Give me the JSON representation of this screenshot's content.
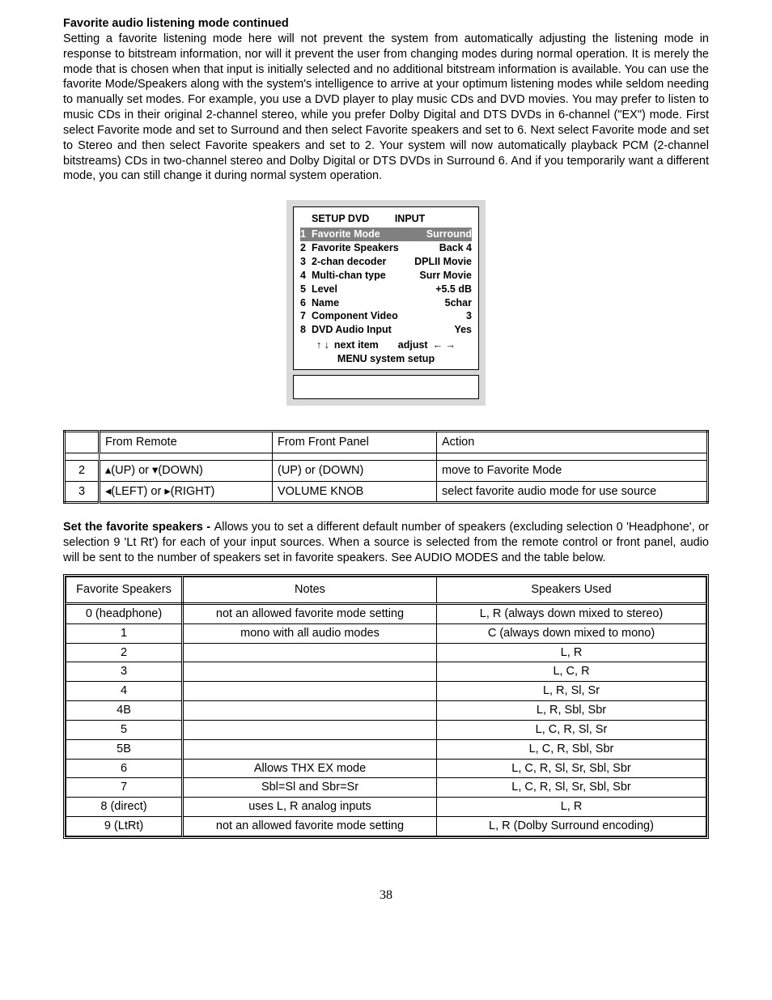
{
  "colors": {
    "page_bg": "#ffffff",
    "text": "#000000",
    "osd_wrapper_bg": "#d9d9d9",
    "osd_highlight_bg": "#808080",
    "osd_highlight_text": "#ffffff",
    "border": "#000000"
  },
  "typography": {
    "body_font": "Arial",
    "body_size_pt": 11,
    "page_number_font": "Times New Roman",
    "page_number_size_pt": 12
  },
  "header": {
    "title": "Favorite audio listening mode continued"
  },
  "body": {
    "para1": "Setting a favorite listening mode here will not prevent the system from automatically adjusting the listening mode in response to bitstream information, nor will it prevent the user from changing modes during normal operation. It is merely the mode that is chosen when that input is initially selected and no additional bitstream information is available. You can use the favorite Mode/Speakers along with the system's intelligence to arrive at your optimum listening modes while seldom needing to manually set modes. For example, you use a DVD player to play music CDs and DVD movies. You may prefer to listen to music CDs in their original 2-channel stereo, while you prefer Dolby Digital and DTS DVDs in 6-channel (\"EX\") mode. First select Favorite mode and set to Surround and then select Favorite speakers and set to 6. Next select Favorite mode and set to Stereo and then select Favorite speakers and set to 2. Your system will now automatically playback PCM (2-channel bitstreams) CDs in two-channel stereo and Dolby Digital or DTS DVDs in Surround 6. And if you temporarily want a different mode, you can still change it during normal system operation.",
    "para2_lead": "Set the favorite speakers - ",
    "para2": "Allows you to set a different default number of speakers (excluding selection 0 'Headphone', or selection 9 'Lt Rt') for each of your input sources. When a source is selected from the remote control or front panel, audio will be sent to the number of speakers set in favorite speakers. See AUDIO MODES and the table below."
  },
  "osd": {
    "header_left": "SETUP DVD",
    "header_right": "INPUT",
    "rows": [
      {
        "n": "1",
        "label": "Favorite Mode",
        "val": "Surround",
        "highlighted": true
      },
      {
        "n": "2",
        "label": "Favorite Speakers",
        "val": "Back 4",
        "highlighted": false
      },
      {
        "n": "3",
        "label": "2-chan decoder",
        "val": "DPLII Movie",
        "highlighted": false
      },
      {
        "n": "4",
        "label": "Multi-chan type",
        "val": "Surr Movie",
        "highlighted": false
      },
      {
        "n": "5",
        "label": "Level",
        "val": "+5.5 dB",
        "highlighted": false
      },
      {
        "n": "6",
        "label": "Name",
        "val": "5char",
        "highlighted": false
      },
      {
        "n": "7",
        "label": "Component Video",
        "val": "3",
        "highlighted": false
      },
      {
        "n": "8",
        "label": "DVD Audio Input",
        "val": "Yes",
        "highlighted": false
      }
    ],
    "nav": {
      "updown": "↑ ↓",
      "next": "next item",
      "adjust": "adjust",
      "leftright": "← →"
    },
    "footer": "MENU system setup"
  },
  "action_table": {
    "headers": {
      "step": "",
      "remote": "From Remote",
      "panel": "From Front Panel",
      "action": "Action"
    },
    "rows": [
      {
        "step": "2",
        "remote": "▴(UP) or ▾(DOWN)",
        "panel": "(UP) or (DOWN)",
        "action": "move to Favorite Mode"
      },
      {
        "step": "3",
        "remote": "◂(LEFT) or ▸(RIGHT)",
        "panel": "VOLUME KNOB",
        "action": "select favorite audio mode for use source"
      }
    ],
    "col_widths": {
      "step": "28px",
      "remote": "200px",
      "panel": "190px",
      "action": "auto"
    }
  },
  "speaker_table": {
    "headers": {
      "fav": "Favorite Speakers",
      "notes": "Notes",
      "used": "Speakers Used"
    },
    "rows": [
      {
        "fav": "0 (headphone)",
        "notes": "not an allowed favorite mode setting",
        "used": "L, R (always down mixed to stereo)"
      },
      {
        "fav": "1",
        "notes": "mono with all audio modes",
        "used": "C (always down mixed to mono)"
      },
      {
        "fav": "2",
        "notes": "",
        "used": "L, R"
      },
      {
        "fav": "3",
        "notes": "",
        "used": "L, C, R"
      },
      {
        "fav": "4",
        "notes": "",
        "used": "L, R, Sl, Sr"
      },
      {
        "fav": "4B",
        "notes": "",
        "used": "L, R, Sbl, Sbr"
      },
      {
        "fav": "5",
        "notes": "",
        "used": "L, C, R, Sl, Sr"
      },
      {
        "fav": "5B",
        "notes": "",
        "used": "L, C, R, Sbl, Sbr"
      },
      {
        "fav": "6",
        "notes": "Allows THX EX mode",
        "used": "L, C, R, Sl, Sr, Sbl, Sbr"
      },
      {
        "fav": "7",
        "notes": "Sbl=Sl and Sbr=Sr",
        "used": "L, C, R, Sl, Sr, Sbl, Sbr"
      },
      {
        "fav": "8 (direct)",
        "notes": "uses L, R analog inputs",
        "used": "L, R"
      },
      {
        "fav": "9 (LtRt)",
        "notes": "not an allowed favorite mode setting",
        "used": "L, R (Dolby Surround encoding)"
      }
    ],
    "col_widths": {
      "fav": "130px",
      "notes": "300px",
      "used": "auto"
    }
  },
  "page_number": "38"
}
